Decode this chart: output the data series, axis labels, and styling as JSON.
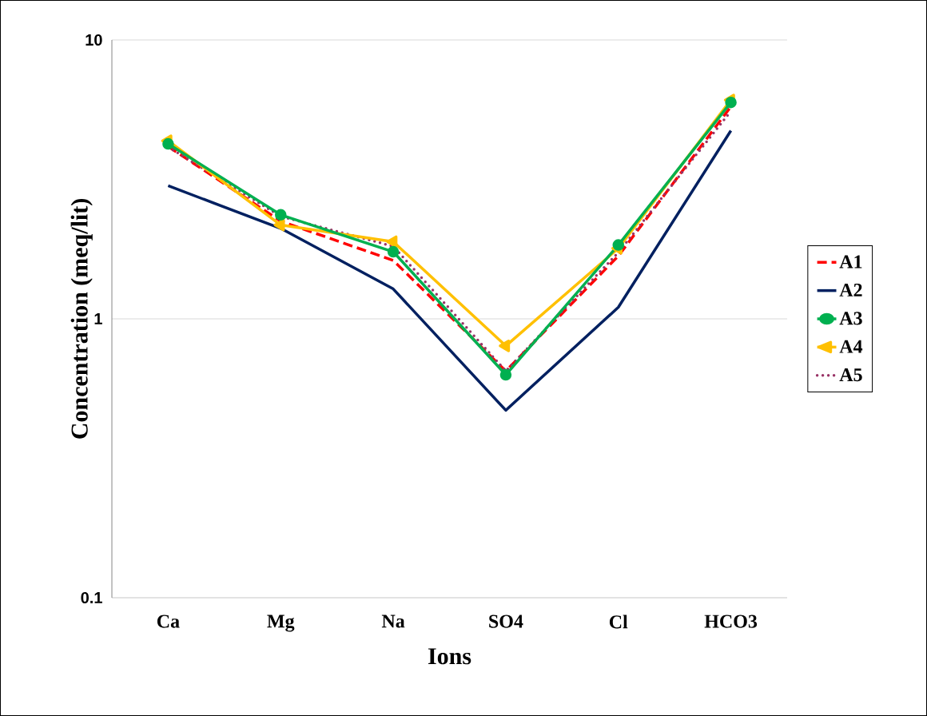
{
  "chart_data": {
    "type": "line",
    "xlabel": "Ions",
    "ylabel": "Concentration (meq/lit)",
    "categories": [
      "Ca",
      "Mg",
      "Na",
      "SO4",
      "Cl",
      "HCO3"
    ],
    "log": "y",
    "ylim": [
      0.1,
      10
    ],
    "yticks": [
      0.1,
      1,
      10
    ],
    "grid": "y",
    "legend": "right",
    "series": [
      {
        "name": "A1",
        "color": "#ff0000",
        "line_style": "dashed",
        "marker": "none",
        "values": [
          4.15,
          2.24,
          1.62,
          0.65,
          1.68,
          5.77
        ]
      },
      {
        "name": "A2",
        "color": "#002060",
        "line_style": "solid",
        "marker": "none",
        "values": [
          3.0,
          2.11,
          1.28,
          0.47,
          1.1,
          4.73
        ]
      },
      {
        "name": "A3",
        "color": "#00b050",
        "line_style": "solid",
        "marker": "circle",
        "values": [
          4.24,
          2.36,
          1.74,
          0.63,
          1.84,
          5.97
        ]
      },
      {
        "name": "A4",
        "color": "#ffc000",
        "line_style": "solid",
        "marker": "triangle",
        "values": [
          4.35,
          2.17,
          1.89,
          0.8,
          1.79,
          6.09
        ]
      },
      {
        "name": "A5",
        "color": "#993366",
        "line_style": "dotted",
        "marker": "none",
        "values": [
          4.13,
          2.33,
          1.82,
          0.65,
          1.73,
          5.55
        ]
      }
    ]
  }
}
